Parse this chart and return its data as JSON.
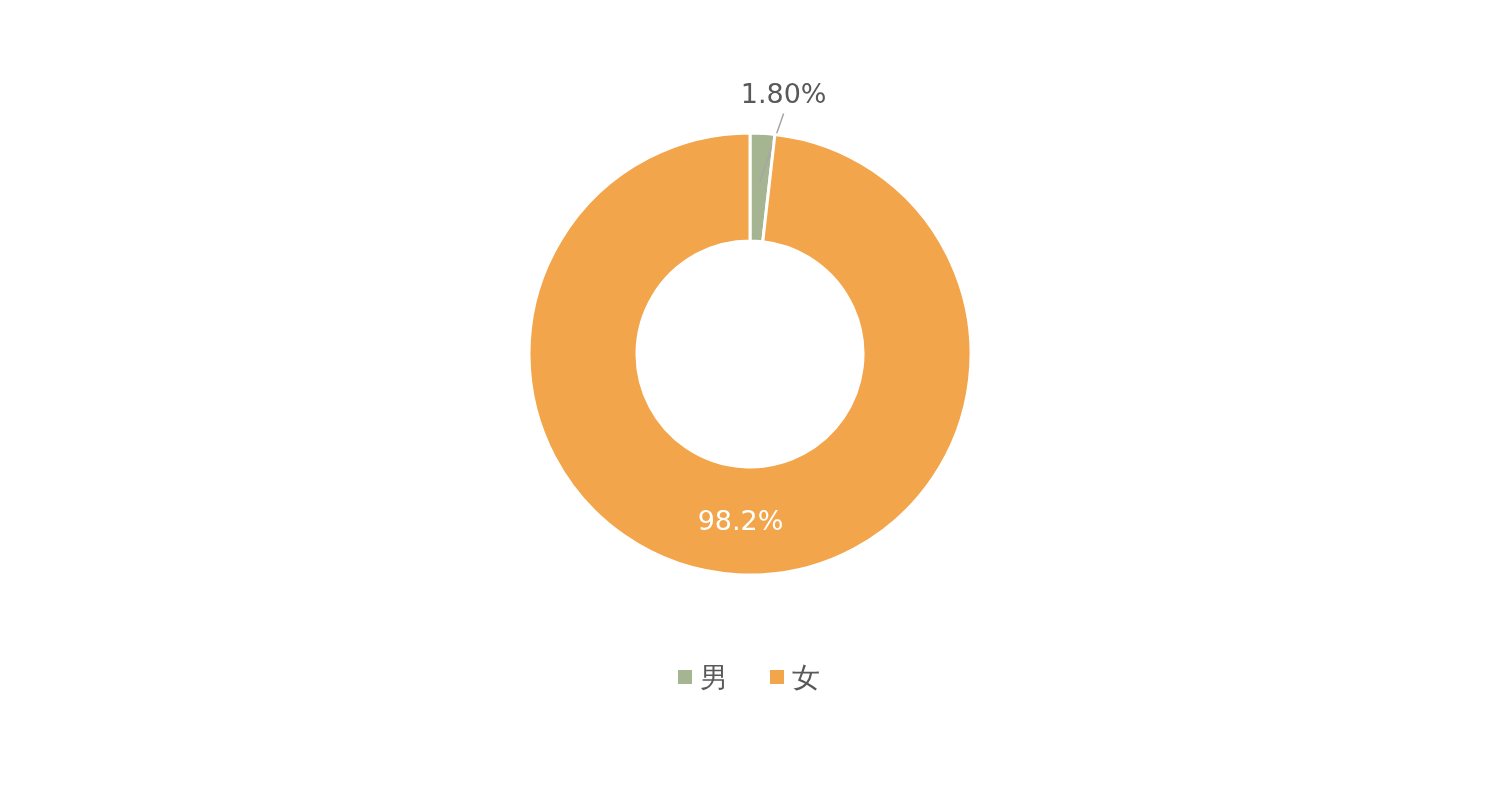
{
  "chart_data": {
    "type": "donut",
    "categories": [
      "男",
      "女"
    ],
    "values": [
      1.8,
      98.2
    ],
    "colors": [
      "#a5b592",
      "#f2a54a"
    ],
    "value_labels": [
      "1.80%",
      "98.2%"
    ],
    "legend": "bottom"
  }
}
